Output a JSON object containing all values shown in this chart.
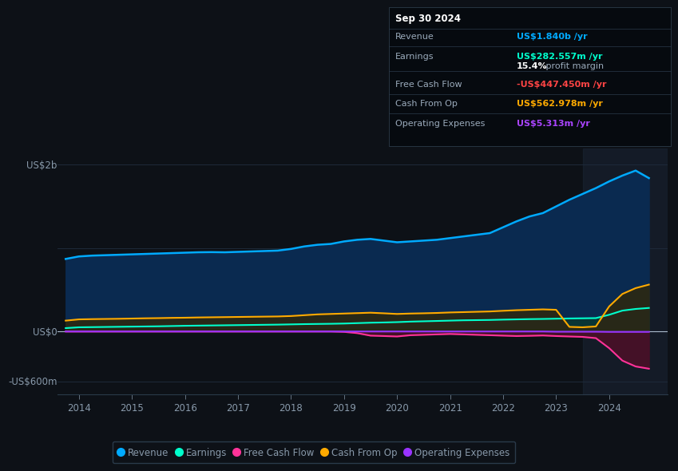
{
  "background_color": "#0d1117",
  "plot_bg_color": "#0d1117",
  "text_color": "#8899aa",
  "ylabel_us2b": "US$2b",
  "ylabel_us0": "US$0",
  "ylabel_usneg600m": "-US$600m",
  "x_years": [
    2013.75,
    2014.0,
    2014.25,
    2014.5,
    2014.75,
    2015.0,
    2015.25,
    2015.5,
    2015.75,
    2016.0,
    2016.25,
    2016.5,
    2016.75,
    2017.0,
    2017.25,
    2017.5,
    2017.75,
    2018.0,
    2018.25,
    2018.5,
    2018.75,
    2019.0,
    2019.25,
    2019.5,
    2019.75,
    2020.0,
    2020.25,
    2020.5,
    2020.75,
    2021.0,
    2021.25,
    2021.5,
    2021.75,
    2022.0,
    2022.25,
    2022.5,
    2022.75,
    2023.0,
    2023.25,
    2023.5,
    2023.75,
    2024.0,
    2024.25,
    2024.5,
    2024.75
  ],
  "revenue": [
    870,
    900,
    910,
    915,
    920,
    925,
    930,
    935,
    940,
    945,
    950,
    952,
    950,
    955,
    960,
    965,
    970,
    990,
    1020,
    1040,
    1050,
    1080,
    1100,
    1110,
    1090,
    1070,
    1080,
    1090,
    1100,
    1120,
    1140,
    1160,
    1180,
    1250,
    1320,
    1380,
    1420,
    1500,
    1580,
    1650,
    1720,
    1800,
    1870,
    1930,
    1840
  ],
  "earnings": [
    40,
    50,
    52,
    54,
    56,
    58,
    60,
    62,
    65,
    68,
    70,
    72,
    74,
    76,
    78,
    80,
    82,
    85,
    88,
    90,
    92,
    95,
    100,
    105,
    108,
    112,
    118,
    122,
    126,
    130,
    134,
    136,
    138,
    142,
    145,
    148,
    150,
    153,
    156,
    158,
    160,
    200,
    250,
    270,
    282
  ],
  "free_cash_flow": [
    0,
    0,
    0,
    0,
    0,
    0,
    0,
    0,
    0,
    0,
    0,
    0,
    0,
    0,
    0,
    0,
    0,
    0,
    0,
    0,
    0,
    -5,
    -20,
    -50,
    -55,
    -60,
    -45,
    -40,
    -35,
    -30,
    -35,
    -40,
    -45,
    -50,
    -55,
    -52,
    -48,
    -55,
    -60,
    -65,
    -80,
    -200,
    -350,
    -420,
    -447
  ],
  "cash_from_op": [
    130,
    145,
    148,
    150,
    152,
    155,
    158,
    160,
    163,
    165,
    168,
    170,
    172,
    174,
    176,
    178,
    180,
    185,
    195,
    205,
    210,
    215,
    220,
    225,
    218,
    210,
    215,
    218,
    222,
    228,
    232,
    236,
    240,
    248,
    255,
    260,
    265,
    260,
    55,
    50,
    60,
    300,
    450,
    520,
    562
  ],
  "operating_expenses": [
    0,
    0,
    0,
    0,
    0,
    0,
    0,
    0,
    0,
    0,
    0,
    0,
    0,
    0,
    0,
    0,
    0,
    0,
    0,
    0,
    0,
    0,
    0,
    0,
    0,
    0,
    0,
    0,
    0,
    0,
    0,
    0,
    0,
    0,
    0,
    0,
    0,
    -3,
    -3,
    -3,
    -3,
    -5,
    -5,
    -5,
    -5
  ],
  "revenue_color": "#00aaff",
  "earnings_color": "#00ffcc",
  "free_cash_flow_color": "#ff3399",
  "cash_from_op_color": "#ffaa00",
  "operating_expenses_color": "#9933ff",
  "revenue_fill": "#0a2a50",
  "earnings_fill": "#0a3535",
  "cash_from_op_fill": "#282818",
  "free_cash_flow_fill_neg": "#4a1028",
  "shade_start_year": 2023.5,
  "annotation_date": "Sep 30 2024",
  "ann_revenue_label": "Revenue",
  "ann_revenue_val": "US$1.840b",
  "ann_revenue_val_color": "#00aaff",
  "ann_earnings_label": "Earnings",
  "ann_earnings_val": "US$282.557m",
  "ann_earnings_val_color": "#00ffcc",
  "ann_margin_bold": "15.4%",
  "ann_margin_text": " profit margin",
  "ann_fcf_label": "Free Cash Flow",
  "ann_fcf_val": "-US$447.450m",
  "ann_fcf_val_color": "#ff4444",
  "ann_cfop_label": "Cash From Op",
  "ann_cfop_val": "US$562.978m",
  "ann_cfop_val_color": "#ffaa00",
  "ann_opex_label": "Operating Expenses",
  "ann_opex_val": "US$5.313m",
  "ann_opex_val_color": "#aa44ff",
  "legend_items": [
    "Revenue",
    "Earnings",
    "Free Cash Flow",
    "Cash From Op",
    "Operating Expenses"
  ],
  "legend_colors": [
    "#00aaff",
    "#00ffcc",
    "#ff3399",
    "#ffaa00",
    "#9933ff"
  ],
  "ylim_top": 2200,
  "ylim_bottom": -750,
  "xlim_left": 2013.6,
  "xlim_right": 2025.1,
  "xtick_years": [
    2014,
    2015,
    2016,
    2017,
    2018,
    2019,
    2020,
    2021,
    2022,
    2023,
    2024
  ]
}
